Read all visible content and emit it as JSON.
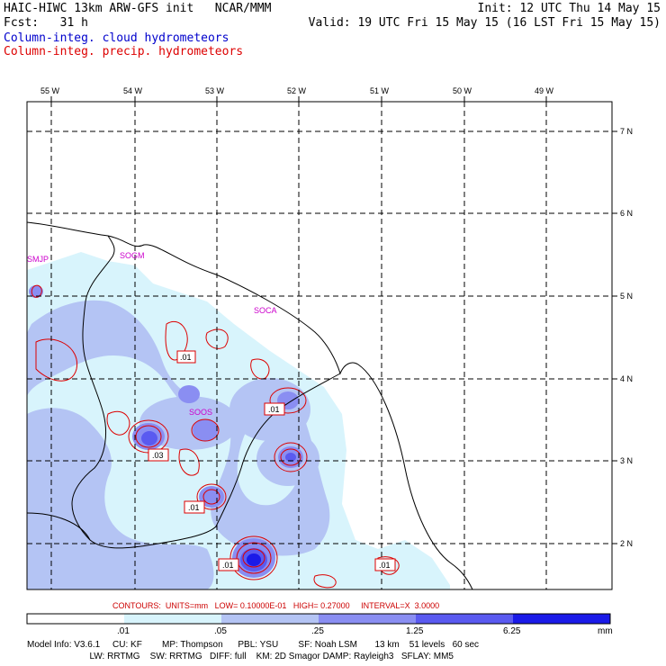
{
  "header": {
    "title": "HAIC-HIWC 13km ARW-GFS init   NCAR/MMM",
    "init": "Init: 12 UTC Thu 14 May 15",
    "fcst": "Fcst:   31 h",
    "valid": "Valid: 19 UTC Fri 15 May 15 (16 LST Fri 15 May 15)",
    "legend_cloud": "Column-integ. cloud hydrometeors",
    "legend_precip": "Column-integ. precip. hydrometeors",
    "color_cloud": "#0000cc",
    "color_precip": "#dd0000"
  },
  "map": {
    "lon_labels": [
      "55 W",
      "54 W",
      "53 W",
      "52 W",
      "51 W",
      "50 W",
      "49 W"
    ],
    "lat_labels": [
      "7 N",
      "6 N",
      "5 N",
      "4 N",
      "3 N",
      "2 N"
    ],
    "stations": [
      "SMJP",
      "SOGM",
      "SOCA",
      "SOOS"
    ],
    "contour_labels": [
      ".01",
      ".01",
      ".03",
      ".01",
      ".01",
      ".01"
    ]
  },
  "contours_line": "CONTOURS:  UNITS=mm   LOW= 0.10000E-01   HIGH= 0.27000     INTERVAL=X  3.0000",
  "colorbar": {
    "ticks": [
      ".01",
      ".05",
      ".25",
      "1.25",
      "6.25"
    ],
    "unit": "mm",
    "colors": [
      "#ffffff",
      "#d8f4fc",
      "#b4c4f4",
      "#8a8ef2",
      "#5a5af0",
      "#1a1ae8"
    ]
  },
  "footer": {
    "line1": "Model Info: V3.6.1     CU: KF        MP: Thompson      PBL: YSU        SF: Noah LSM       13 km    51 levels   60 sec",
    "line2": "                         LW: RRTMG    SW: RRTMG   DIFF: full    KM: 2D Smagor DAMP: Rayleigh3   SFLAY: MM5"
  }
}
